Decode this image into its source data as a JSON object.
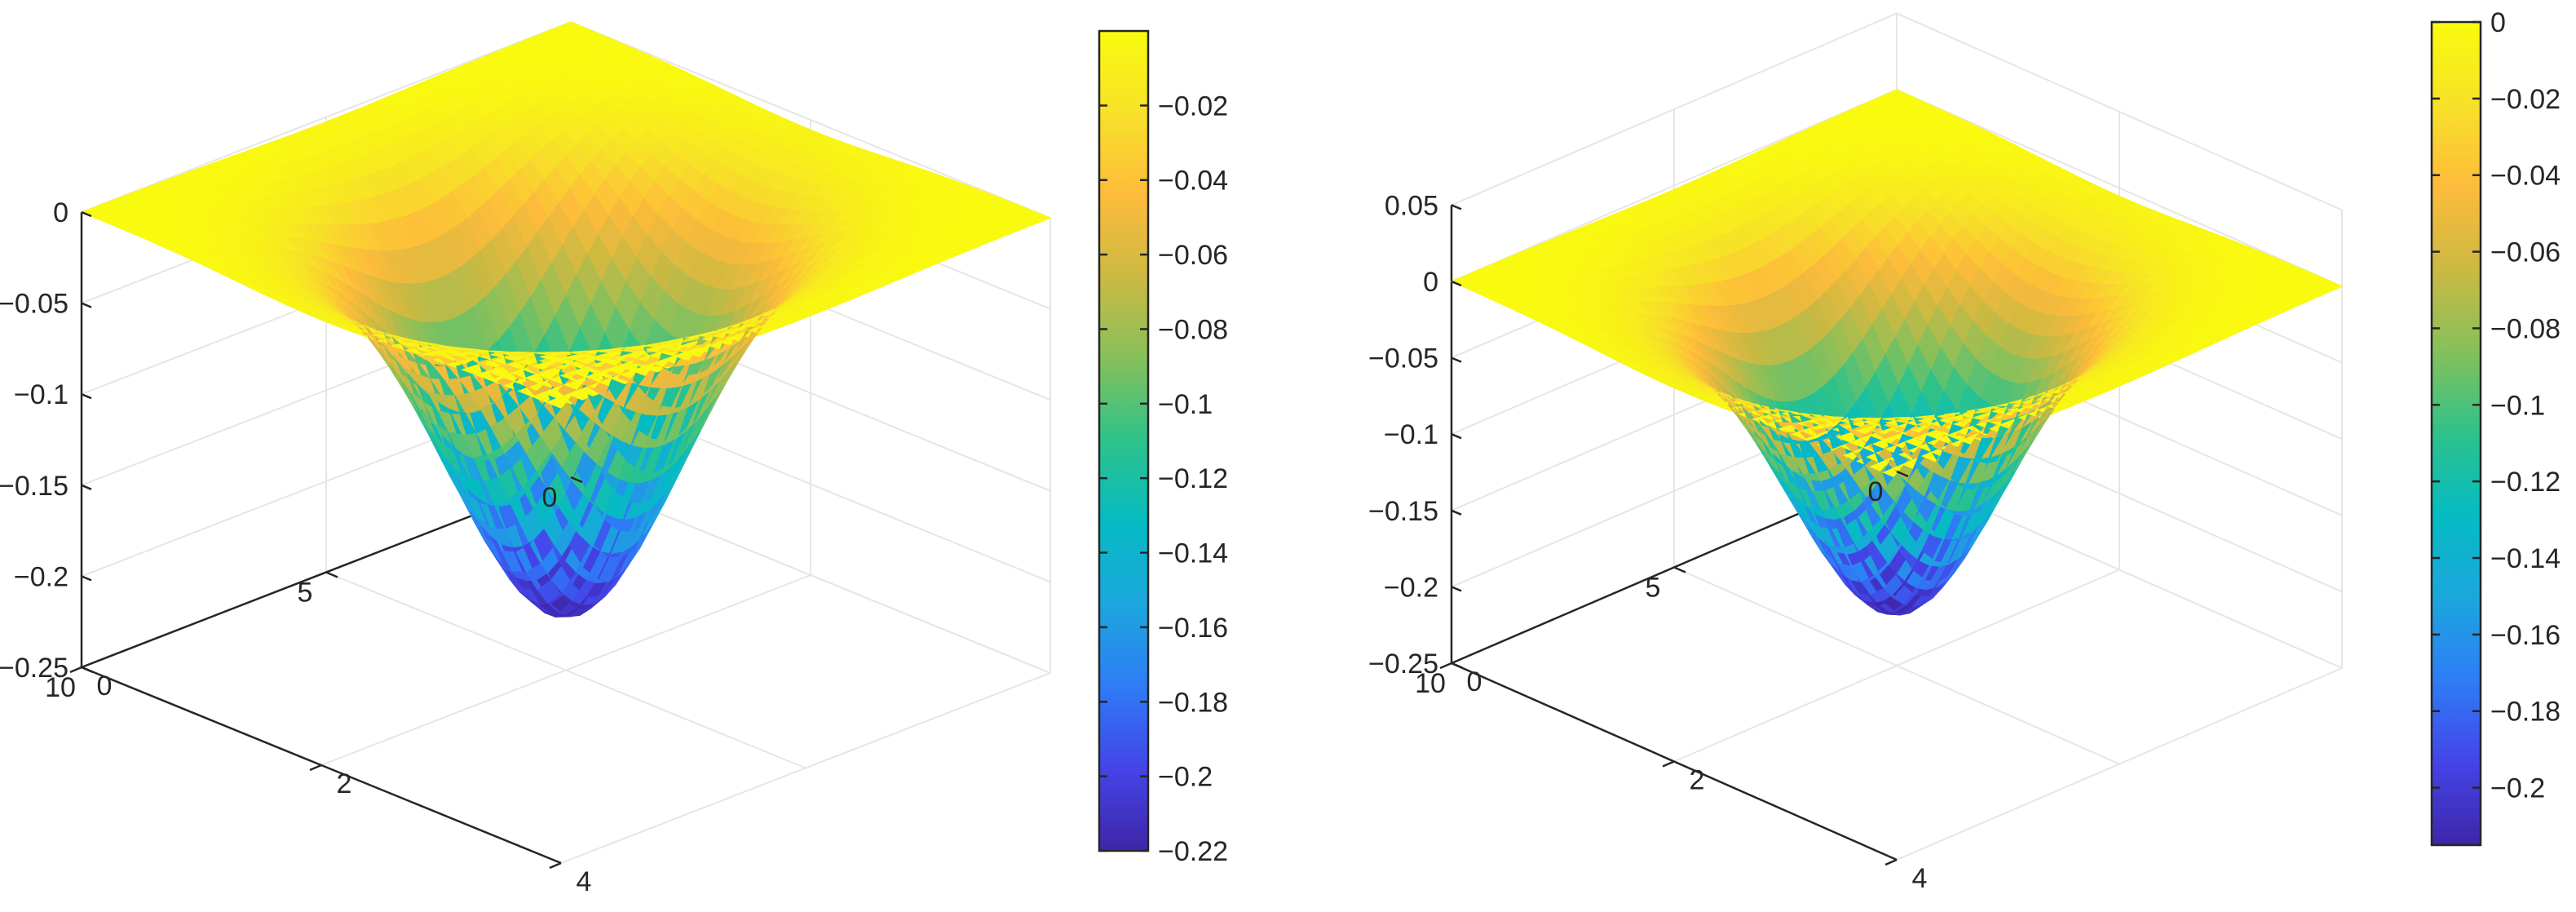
{
  "figure": {
    "title": ""
  },
  "chart_data": [
    {
      "type": "surface",
      "panel": "left",
      "title": "",
      "xlabel": "",
      "ylabel": "",
      "zlabel": "",
      "x_axis": {
        "ticks": [
          0,
          2,
          4
        ],
        "range": [
          0,
          4
        ]
      },
      "y_axis": {
        "ticks": [
          0,
          5,
          10
        ],
        "range": [
          0,
          10
        ]
      },
      "z_axis": {
        "ticks": [
          0,
          -0.05,
          -0.1,
          -0.15,
          -0.2,
          -0.25
        ],
        "range": [
          -0.25,
          0
        ]
      },
      "surface": {
        "plateau_value": 0,
        "minimum_value": -0.22,
        "minimum_location": [
          2,
          5
        ],
        "shape": "single-well"
      },
      "colorbar": {
        "colormap": "parula",
        "range": [
          -0.22,
          0
        ],
        "ticks": [
          -0.02,
          -0.04,
          -0.06,
          -0.08,
          -0.1,
          -0.12,
          -0.14,
          -0.16,
          -0.18,
          -0.2,
          -0.22
        ]
      },
      "grid": true
    },
    {
      "type": "surface",
      "panel": "right",
      "title": "",
      "xlabel": "",
      "ylabel": "",
      "zlabel": "",
      "x_axis": {
        "ticks": [
          0,
          2,
          4
        ],
        "range": [
          0,
          4
        ]
      },
      "y_axis": {
        "ticks": [
          0,
          5,
          10
        ],
        "range": [
          0,
          10
        ]
      },
      "z_axis": {
        "ticks": [
          0.05,
          0,
          -0.05,
          -0.1,
          -0.15,
          -0.2,
          -0.25
        ],
        "range": [
          -0.25,
          0.05
        ]
      },
      "surface": {
        "plateau_value": 0,
        "minimum_value": -0.215,
        "minimum_location": [
          2,
          5
        ],
        "shape": "single-well"
      },
      "colorbar": {
        "colormap": "parula",
        "range": [
          -0.215,
          0
        ],
        "ticks": [
          0,
          -0.02,
          -0.04,
          -0.06,
          -0.08,
          -0.1,
          -0.12,
          -0.14,
          -0.16,
          -0.18,
          -0.2
        ]
      },
      "grid": true
    }
  ],
  "colors": {
    "parula": [
      "#3e26a8",
      "#4444e8",
      "#2e7cf6",
      "#1ca6dd",
      "#05bbc3",
      "#2dc28a",
      "#86c05b",
      "#ccb942",
      "#fdbb3b",
      "#f7e128",
      "#f9fb0e"
    ],
    "axis": "#262626",
    "grid": "#e6e6e6"
  }
}
